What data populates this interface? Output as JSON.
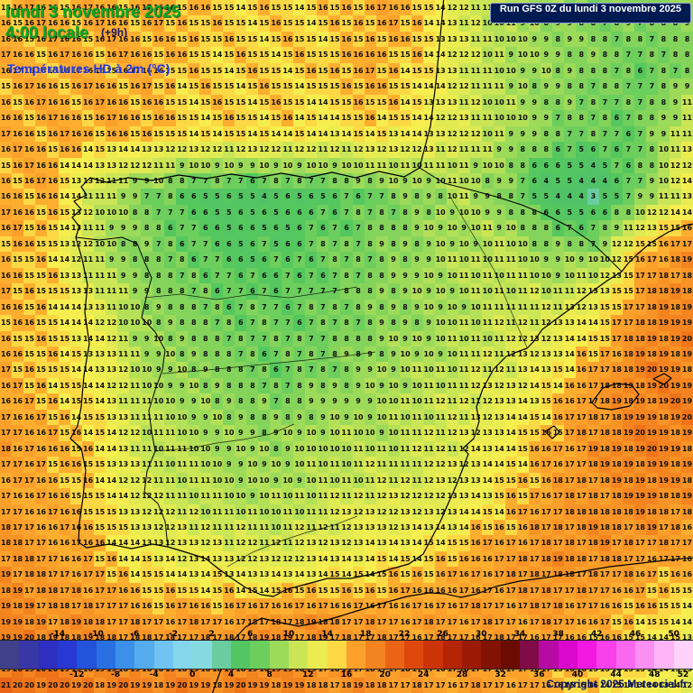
{
  "header": {
    "date_line": "lundi 3 novembre 2025",
    "time_line": "4:00 locale",
    "offset_label": "(+9h)",
    "variable_label": "Températures HD à 2m (°C)",
    "run_label": "Run GFS 0Z du lundi 3 novembre 2025"
  },
  "footer": {
    "copyright": "Copyright 2025 Meteociel.fr"
  },
  "colors": {
    "header_green": "#00ab28",
    "variable_blue": "#2236e0",
    "run_box_bg": "#001a52",
    "run_box_border": "#8fa3c8",
    "run_box_text": "#ffffff",
    "copyright_blue": "#0b1566"
  },
  "scale": {
    "unit": "°C",
    "min": -20,
    "max": 52,
    "step": 2,
    "top_labels": [
      -14,
      -10,
      -6,
      -2,
      2,
      6,
      10,
      14,
      18,
      22,
      26,
      30,
      34,
      38,
      42,
      46,
      50
    ],
    "bottom_labels": [
      -12,
      -8,
      -4,
      0,
      4,
      8,
      12,
      16,
      20,
      24,
      28,
      32,
      36,
      40,
      44,
      48,
      52
    ],
    "stops": [
      [
        -20,
        "#44447c"
      ],
      [
        -14,
        "#2a2ace"
      ],
      [
        -10,
        "#2060de"
      ],
      [
        -6,
        "#45a0ec"
      ],
      [
        -2,
        "#7fd0f2"
      ],
      [
        0,
        "#8adce8"
      ],
      [
        2,
        "#80d8d8"
      ],
      [
        4,
        "#52c268"
      ],
      [
        6,
        "#54c85e"
      ],
      [
        8,
        "#84d45c"
      ],
      [
        10,
        "#b4e058"
      ],
      [
        12,
        "#e0ea52"
      ],
      [
        14,
        "#f6ee4e"
      ],
      [
        15,
        "#fcd944"
      ],
      [
        16,
        "#fdae2f"
      ],
      [
        18,
        "#f89426"
      ],
      [
        20,
        "#ef7419"
      ],
      [
        22,
        "#e65410"
      ],
      [
        24,
        "#d63c0a"
      ],
      [
        26,
        "#c22b06"
      ],
      [
        28,
        "#a81f04"
      ],
      [
        30,
        "#8e1503"
      ],
      [
        32,
        "#750e02"
      ],
      [
        34,
        "#600901"
      ],
      [
        36,
        "#a00c8c"
      ],
      [
        38,
        "#cc08bc"
      ],
      [
        40,
        "#ec05dc"
      ],
      [
        42,
        "#f92ce8"
      ],
      [
        46,
        "#fc7cf2"
      ],
      [
        50,
        "#fec8f8"
      ],
      [
        52,
        "#fedcfa"
      ]
    ]
  },
  "map": {
    "grid_cols": 59,
    "grid_rows": 44,
    "field_cols": 16,
    "field_rows": 12,
    "field": [
      [
        16,
        16,
        16,
        16,
        16,
        15,
        15,
        15,
        16,
        16,
        12,
        10,
        9,
        8,
        8,
        9
      ],
      [
        16,
        16,
        16,
        16,
        15,
        15,
        15,
        15,
        16,
        15,
        12,
        10,
        9,
        8,
        7,
        8
      ],
      [
        16,
        16,
        16,
        16,
        15,
        15,
        15,
        14,
        15,
        14,
        12,
        10,
        8,
        7,
        7,
        12
      ],
      [
        16,
        16,
        11,
        8,
        6,
        5,
        5,
        6,
        7,
        8,
        10,
        8,
        4,
        3,
        8,
        13
      ],
      [
        16,
        15,
        10,
        8,
        7,
        6,
        6,
        7,
        8,
        9,
        10,
        11,
        9,
        9,
        16,
        18
      ],
      [
        16,
        15,
        13,
        9,
        8,
        7,
        7,
        7,
        8,
        9,
        10,
        11,
        12,
        14,
        18,
        19
      ],
      [
        16,
        15,
        14,
        10,
        9,
        8,
        7,
        8,
        9,
        10,
        11,
        12,
        14,
        17,
        19,
        19
      ],
      [
        17,
        16,
        15,
        11,
        10,
        9,
        9,
        10,
        10,
        11,
        12,
        14,
        16,
        18,
        19,
        19
      ],
      [
        17,
        16,
        15,
        12,
        11,
        10,
        10,
        11,
        12,
        12,
        13,
        15,
        17,
        18,
        19,
        18
      ],
      [
        18,
        17,
        16,
        14,
        13,
        13,
        12,
        13,
        14,
        15,
        16,
        17,
        18,
        18,
        17,
        16
      ],
      [
        19,
        18,
        18,
        17,
        17,
        17,
        18,
        18,
        17,
        17,
        17,
        17,
        17,
        16,
        15,
        14
      ],
      [
        20,
        20,
        19,
        19,
        19,
        19,
        19,
        18,
        18,
        17,
        17,
        17,
        16,
        15,
        14,
        13
      ]
    ]
  }
}
